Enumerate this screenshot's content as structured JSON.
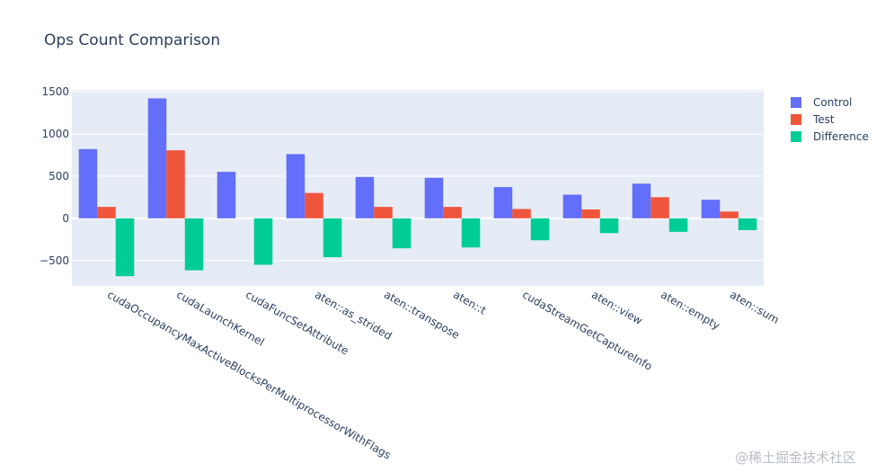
{
  "watermark": "@稀土掘金技术社区",
  "chart_data": {
    "type": "bar",
    "title": "Ops Count Comparison",
    "xlabel": "",
    "ylabel": "",
    "ylim": [
      -800,
      1520
    ],
    "yticks": [
      -500,
      0,
      500,
      1000,
      1500
    ],
    "yticklabels": [
      "−500",
      "0",
      "500",
      "1000",
      "1500"
    ],
    "grid": true,
    "legend_position": "top-right",
    "categories": [
      "cudaOccupancyMaxActiveBlocksPerMultiprocessorWithFlags",
      "cudaLaunchKernel",
      "cudaFuncSetAttribute",
      "aten::as_strided",
      "aten::transpose",
      "aten::t",
      "cudaStreamGetCaptureInfo",
      "aten::view",
      "aten::empty",
      "aten::sum"
    ],
    "series": [
      {
        "name": "Control",
        "color": "#636efa",
        "values": [
          820,
          1420,
          550,
          760,
          490,
          480,
          370,
          280,
          410,
          220
        ]
      },
      {
        "name": "Test",
        "color": "#ef553b",
        "values": [
          135,
          805,
          0,
          300,
          135,
          135,
          110,
          105,
          250,
          80
        ]
      },
      {
        "name": "Difference",
        "color": "#00cc96",
        "values": [
          -685,
          -615,
          -550,
          -460,
          -355,
          -345,
          -260,
          -175,
          -160,
          -140
        ]
      }
    ]
  }
}
